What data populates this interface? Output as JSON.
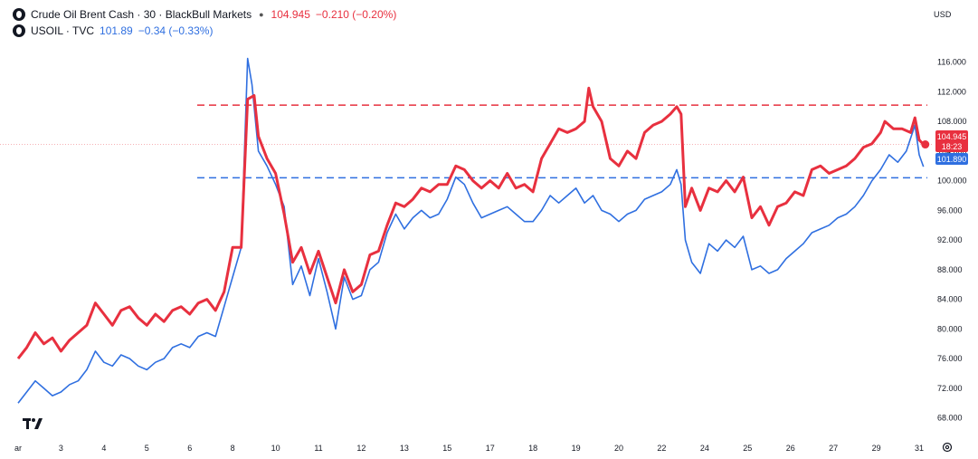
{
  "legend": {
    "series1": {
      "name": "Crude Oil Brent Cash · 30 · BlackBull Markets",
      "last": "104.945",
      "change": "−0.210 (−0.20%)"
    },
    "series2": {
      "name": "USOIL · TVC",
      "last": "101.89",
      "change": "−0.34 (−0.33%)"
    }
  },
  "currency": "USD",
  "price_tags": {
    "brent_price": "104.945",
    "brent_countdown": "18:23",
    "usoil_price": "101.890"
  },
  "colors": {
    "brent": "#e8303f",
    "usoil": "#2f6fe0",
    "axis_text": "#131722",
    "grid_none": true
  },
  "icons": {
    "logo": "tradingview-logo-icon",
    "settings": "settings-gear-icon"
  },
  "chart_data": {
    "type": "line",
    "x_ticks": [
      "ar",
      "3",
      "4",
      "5",
      "6",
      "8",
      "10",
      "11",
      "12",
      "13",
      "15",
      "17",
      "18",
      "19",
      "20",
      "22",
      "24",
      "25",
      "26",
      "27",
      "29",
      "31"
    ],
    "x_domain": [
      0,
      21
    ],
    "y_ticks": [
      "68.000",
      "72.000",
      "76.000",
      "80.000",
      "84.000",
      "88.000",
      "92.000",
      "96.000",
      "100.000",
      "104.000",
      "108.000",
      "112.000",
      "116.000"
    ],
    "ylim": [
      66,
      119.5
    ],
    "horizontal_lines": [
      {
        "series": "brent",
        "value": 110.2,
        "style": "dashed"
      },
      {
        "series": "usoil",
        "value": 100.4,
        "style": "dashed"
      }
    ],
    "series": [
      {
        "name": "Crude Oil Brent Cash · 30 · BlackBull Markets",
        "color": "#e8303f",
        "points": [
          [
            0.0,
            76.0
          ],
          [
            0.2,
            77.5
          ],
          [
            0.4,
            79.5
          ],
          [
            0.6,
            78.0
          ],
          [
            0.8,
            78.8
          ],
          [
            1.0,
            77.0
          ],
          [
            1.2,
            78.5
          ],
          [
            1.4,
            79.5
          ],
          [
            1.6,
            80.5
          ],
          [
            1.8,
            83.5
          ],
          [
            2.0,
            82.0
          ],
          [
            2.2,
            80.5
          ],
          [
            2.4,
            82.5
          ],
          [
            2.6,
            83.0
          ],
          [
            2.8,
            81.5
          ],
          [
            3.0,
            80.5
          ],
          [
            3.2,
            82.0
          ],
          [
            3.4,
            81.0
          ],
          [
            3.6,
            82.5
          ],
          [
            3.8,
            83.0
          ],
          [
            4.0,
            82.0
          ],
          [
            4.2,
            83.5
          ],
          [
            4.4,
            84.0
          ],
          [
            4.6,
            82.5
          ],
          [
            4.8,
            85.0
          ],
          [
            5.0,
            91.0
          ],
          [
            5.2,
            91.0
          ],
          [
            5.35,
            111.0
          ],
          [
            5.5,
            111.5
          ],
          [
            5.6,
            106.0
          ],
          [
            5.8,
            103.0
          ],
          [
            6.0,
            101.0
          ],
          [
            6.2,
            95.5
          ],
          [
            6.4,
            89.0
          ],
          [
            6.6,
            91.0
          ],
          [
            6.8,
            87.5
          ],
          [
            7.0,
            90.5
          ],
          [
            7.2,
            87.0
          ],
          [
            7.4,
            83.5
          ],
          [
            7.6,
            88.0
          ],
          [
            7.8,
            85.0
          ],
          [
            8.0,
            86.0
          ],
          [
            8.2,
            90.0
          ],
          [
            8.4,
            90.5
          ],
          [
            8.6,
            94.0
          ],
          [
            8.8,
            97.0
          ],
          [
            9.0,
            96.5
          ],
          [
            9.2,
            97.5
          ],
          [
            9.4,
            99.0
          ],
          [
            9.6,
            98.5
          ],
          [
            9.8,
            99.5
          ],
          [
            10.0,
            99.5
          ],
          [
            10.2,
            102.0
          ],
          [
            10.4,
            101.5
          ],
          [
            10.6,
            100.0
          ],
          [
            10.8,
            99.0
          ],
          [
            11.0,
            100.0
          ],
          [
            11.2,
            99.0
          ],
          [
            11.4,
            101.0
          ],
          [
            11.6,
            99.0
          ],
          [
            11.8,
            99.5
          ],
          [
            12.0,
            98.5
          ],
          [
            12.2,
            103.0
          ],
          [
            12.4,
            105.0
          ],
          [
            12.6,
            107.0
          ],
          [
            12.8,
            106.5
          ],
          [
            13.0,
            107.0
          ],
          [
            13.2,
            108.0
          ],
          [
            13.3,
            112.5
          ],
          [
            13.4,
            110.0
          ],
          [
            13.6,
            108.0
          ],
          [
            13.8,
            103.0
          ],
          [
            14.0,
            102.0
          ],
          [
            14.2,
            104.0
          ],
          [
            14.4,
            103.0
          ],
          [
            14.6,
            106.5
          ],
          [
            14.8,
            107.5
          ],
          [
            15.0,
            108.0
          ],
          [
            15.2,
            109.0
          ],
          [
            15.35,
            110.0
          ],
          [
            15.45,
            109.0
          ],
          [
            15.55,
            96.5
          ],
          [
            15.7,
            99.0
          ],
          [
            15.9,
            96.0
          ],
          [
            16.1,
            99.0
          ],
          [
            16.3,
            98.5
          ],
          [
            16.5,
            100.0
          ],
          [
            16.7,
            98.5
          ],
          [
            16.9,
            100.5
          ],
          [
            17.1,
            95.0
          ],
          [
            17.3,
            96.5
          ],
          [
            17.5,
            94.0
          ],
          [
            17.7,
            96.5
          ],
          [
            17.9,
            97.0
          ],
          [
            18.1,
            98.5
          ],
          [
            18.3,
            98.0
          ],
          [
            18.5,
            101.5
          ],
          [
            18.7,
            102.0
          ],
          [
            18.9,
            101.0
          ],
          [
            19.1,
            101.5
          ],
          [
            19.3,
            102.0
          ],
          [
            19.5,
            103.0
          ],
          [
            19.7,
            104.5
          ],
          [
            19.9,
            105.0
          ],
          [
            20.1,
            106.5
          ],
          [
            20.2,
            108.0
          ],
          [
            20.4,
            107.0
          ],
          [
            20.6,
            107.0
          ],
          [
            20.8,
            106.5
          ],
          [
            20.9,
            108.5
          ],
          [
            21.0,
            105.5
          ],
          [
            21.1,
            104.9
          ]
        ]
      },
      {
        "name": "USOIL · TVC",
        "color": "#2f6fe0",
        "points": [
          [
            0.0,
            70.0
          ],
          [
            0.2,
            71.5
          ],
          [
            0.4,
            73.0
          ],
          [
            0.6,
            72.0
          ],
          [
            0.8,
            71.0
          ],
          [
            1.0,
            71.5
          ],
          [
            1.2,
            72.5
          ],
          [
            1.4,
            73.0
          ],
          [
            1.6,
            74.5
          ],
          [
            1.8,
            77.0
          ],
          [
            2.0,
            75.5
          ],
          [
            2.2,
            75.0
          ],
          [
            2.4,
            76.5
          ],
          [
            2.6,
            76.0
          ],
          [
            2.8,
            75.0
          ],
          [
            3.0,
            74.5
          ],
          [
            3.2,
            75.5
          ],
          [
            3.4,
            76.0
          ],
          [
            3.6,
            77.5
          ],
          [
            3.8,
            78.0
          ],
          [
            4.0,
            77.5
          ],
          [
            4.2,
            79.0
          ],
          [
            4.4,
            79.5
          ],
          [
            4.6,
            79.0
          ],
          [
            4.8,
            83.0
          ],
          [
            5.0,
            87.0
          ],
          [
            5.2,
            91.0
          ],
          [
            5.35,
            116.5
          ],
          [
            5.45,
            113.0
          ],
          [
            5.6,
            104.0
          ],
          [
            5.8,
            102.0
          ],
          [
            6.0,
            99.5
          ],
          [
            6.2,
            96.5
          ],
          [
            6.4,
            86.0
          ],
          [
            6.6,
            88.5
          ],
          [
            6.8,
            84.5
          ],
          [
            7.0,
            89.5
          ],
          [
            7.2,
            85.0
          ],
          [
            7.4,
            80.0
          ],
          [
            7.6,
            87.0
          ],
          [
            7.8,
            84.0
          ],
          [
            8.0,
            84.5
          ],
          [
            8.2,
            88.0
          ],
          [
            8.4,
            89.0
          ],
          [
            8.6,
            93.0
          ],
          [
            8.8,
            95.5
          ],
          [
            9.0,
            93.5
          ],
          [
            9.2,
            95.0
          ],
          [
            9.4,
            96.0
          ],
          [
            9.6,
            95.0
          ],
          [
            9.8,
            95.5
          ],
          [
            10.0,
            97.5
          ],
          [
            10.2,
            100.5
          ],
          [
            10.4,
            99.5
          ],
          [
            10.6,
            97.0
          ],
          [
            10.8,
            95.0
          ],
          [
            11.0,
            95.5
          ],
          [
            11.2,
            96.0
          ],
          [
            11.4,
            96.5
          ],
          [
            11.6,
            95.5
          ],
          [
            11.8,
            94.5
          ],
          [
            12.0,
            94.5
          ],
          [
            12.2,
            96.0
          ],
          [
            12.4,
            98.0
          ],
          [
            12.6,
            97.0
          ],
          [
            12.8,
            98.0
          ],
          [
            13.0,
            99.0
          ],
          [
            13.2,
            97.0
          ],
          [
            13.4,
            98.0
          ],
          [
            13.6,
            96.0
          ],
          [
            13.8,
            95.5
          ],
          [
            14.0,
            94.5
          ],
          [
            14.2,
            95.5
          ],
          [
            14.4,
            96.0
          ],
          [
            14.6,
            97.5
          ],
          [
            14.8,
            98.0
          ],
          [
            15.0,
            98.5
          ],
          [
            15.2,
            99.5
          ],
          [
            15.35,
            101.5
          ],
          [
            15.45,
            99.5
          ],
          [
            15.55,
            92.0
          ],
          [
            15.7,
            89.0
          ],
          [
            15.9,
            87.5
          ],
          [
            16.1,
            91.5
          ],
          [
            16.3,
            90.5
          ],
          [
            16.5,
            92.0
          ],
          [
            16.7,
            91.0
          ],
          [
            16.9,
            92.5
          ],
          [
            17.1,
            88.0
          ],
          [
            17.3,
            88.5
          ],
          [
            17.5,
            87.5
          ],
          [
            17.7,
            88.0
          ],
          [
            17.9,
            89.5
          ],
          [
            18.1,
            90.5
          ],
          [
            18.3,
            91.5
          ],
          [
            18.5,
            93.0
          ],
          [
            18.7,
            93.5
          ],
          [
            18.9,
            94.0
          ],
          [
            19.1,
            95.0
          ],
          [
            19.3,
            95.5
          ],
          [
            19.5,
            96.5
          ],
          [
            19.7,
            98.0
          ],
          [
            19.9,
            100.0
          ],
          [
            20.1,
            101.5
          ],
          [
            20.3,
            103.5
          ],
          [
            20.5,
            102.5
          ],
          [
            20.7,
            104.0
          ],
          [
            20.9,
            107.5
          ],
          [
            21.0,
            103.5
          ],
          [
            21.1,
            101.9
          ]
        ]
      }
    ]
  }
}
